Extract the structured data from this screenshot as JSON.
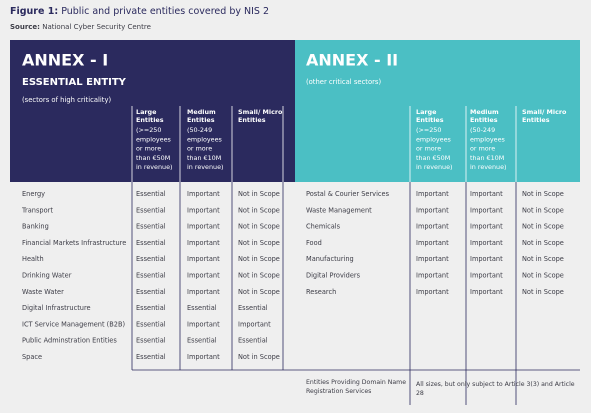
{
  "header": {
    "figure_label": "Figure 1:",
    "title": "Public and private entities covered by NIS 2",
    "source_label": "Source:",
    "source": "National Cyber Security Centre"
  },
  "annex1": {
    "title": "ANNEX - I",
    "subtitle": "ESSENTIAL ENTITY",
    "note": "(sectors of high criticality)",
    "columns": [
      {
        "name": [
          "Large",
          "Entities"
        ],
        "detail": [
          "(>=250",
          "employees",
          "or more",
          "than €50M",
          "in revenue)"
        ]
      },
      {
        "name": [
          "Medium",
          "Entities"
        ],
        "detail": [
          "(50-249",
          "employees",
          "or more",
          "than €10M",
          "in revenue)"
        ]
      },
      {
        "name": [
          "Small/ Micro",
          "Entities"
        ],
        "detail": []
      }
    ],
    "rows": [
      [
        "Energy",
        "Essential",
        "Important",
        "Not in Scope"
      ],
      [
        "Transport",
        "Essential",
        "Important",
        "Not in Scope"
      ],
      [
        "Banking",
        "Essential",
        "Important",
        "Not in Scope"
      ],
      [
        "Financial Markets Infrastructure",
        "Essential",
        "Important",
        "Not in Scope"
      ],
      [
        "Health",
        "Essential",
        "Important",
        "Not in Scope"
      ],
      [
        "Drinking Water",
        "Essential",
        "Important",
        "Not in Scope"
      ],
      [
        "Waste Water",
        "Essential",
        "Important",
        "Not in Scope"
      ],
      [
        "Digital Infrastructure",
        "Essential",
        "Essential",
        "Essential"
      ],
      [
        "ICT Service Management (B2B)",
        "Essential",
        "Important",
        "Important"
      ],
      [
        "Public Adminstration Entities",
        "Essential",
        "Essential",
        "Essential"
      ],
      [
        "Space",
        "Essential",
        "Important",
        "Not in Scope"
      ]
    ]
  },
  "annex2": {
    "title": "ANNEX - II",
    "note": "(other critical sectors)",
    "columns": [
      {
        "name": [
          "Large",
          "Entities"
        ],
        "detail": [
          "(>=250",
          "employees",
          "or more",
          "than €50M",
          "in revenue)"
        ]
      },
      {
        "name": [
          "Medium",
          "Entities"
        ],
        "detail": [
          "(50-249",
          "employees",
          "or more",
          "than €10M",
          "in revenue)"
        ]
      },
      {
        "name": [
          "Small/ Micro",
          "Entities"
        ],
        "detail": []
      }
    ],
    "rows": [
      [
        "Postal & Courier Services",
        "Important",
        "Important",
        "Not in Scope"
      ],
      [
        "Waste Management",
        "Important",
        "Important",
        "Not in Scope"
      ],
      [
        "Chemicals",
        "Important",
        "Important",
        "Not in Scope"
      ],
      [
        "Food",
        "Important",
        "Important",
        "Not in Scope"
      ],
      [
        "Manufacturing",
        "Important",
        "Important",
        "Not in Scope"
      ],
      [
        "Digital Providers",
        "Important",
        "Important",
        "Not in Scope"
      ],
      [
        "Research",
        "Important",
        "Important",
        "Not in Scope"
      ]
    ],
    "footer": {
      "sector": [
        "Entities Providing Domain Name",
        "Registration Services"
      ],
      "note": [
        "All sizes, but only subject to Article 3(3) and Article",
        "28"
      ]
    }
  }
}
